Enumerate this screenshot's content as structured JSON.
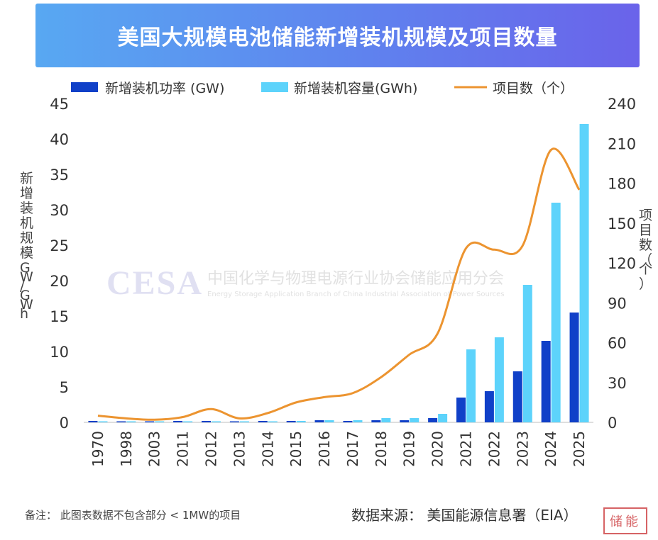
{
  "title": "美国大规模电池储能新增装机规模及项目数量",
  "watermark": {
    "logo": "CESA",
    "org_cn": "中国化学与物理电源行业协会储能应用分会",
    "org_en": "Energy Storage Application Branch of China Industrial Association of Power Sources"
  },
  "footer": {
    "note": "备注： 此图表数据不包含部分 < 1MW的项目",
    "source": "数据来源： 美国能源信息署（EIA）",
    "stamp": "储能"
  },
  "colors": {
    "power": "#1040c8",
    "capacity": "#5dd3fb",
    "projects": "#ec9430",
    "axis_text": "#333333"
  },
  "chart_data": {
    "type": "bar",
    "categories": [
      "1970",
      "1998",
      "2003",
      "2011",
      "2012",
      "2013",
      "2014",
      "2015",
      "2016",
      "2017",
      "2018",
      "2019",
      "2020",
      "2021",
      "2022",
      "2023",
      "2024",
      "2025"
    ],
    "series": [
      {
        "name": "新增装机功率 (GW)",
        "type": "bar",
        "axis": "left",
        "values": [
          0.2,
          0.1,
          0.1,
          0.2,
          0.2,
          0.1,
          0.2,
          0.2,
          0.3,
          0.2,
          0.3,
          0.3,
          0.6,
          3.5,
          4.4,
          7.2,
          11.5,
          15.5
        ]
      },
      {
        "name": "新增装机容量(GWh)",
        "type": "bar",
        "axis": "left",
        "values": [
          0.1,
          0.1,
          0.1,
          0.1,
          0.1,
          0.1,
          0.1,
          0.2,
          0.3,
          0.3,
          0.6,
          0.6,
          1.2,
          10.3,
          12.0,
          19.4,
          31.0,
          42.1
        ]
      },
      {
        "name": "项目数（个）",
        "type": "line",
        "axis": "right",
        "values": [
          5,
          3,
          2,
          4,
          10,
          3,
          7,
          15,
          19,
          22,
          34,
          51,
          67,
          131,
          130,
          133,
          205,
          175
        ]
      }
    ],
    "y_left": {
      "label": "新增装机规模GW/GWh",
      "ticks": [
        0,
        5,
        10,
        15,
        20,
        25,
        30,
        35,
        40,
        45
      ],
      "ylim": [
        0,
        45
      ]
    },
    "y_right": {
      "label": "项目数（个）",
      "ticks": [
        0,
        30,
        60,
        90,
        120,
        150,
        180,
        210,
        240
      ],
      "ylim": [
        0,
        240
      ]
    },
    "legend": "top",
    "grid": false
  }
}
